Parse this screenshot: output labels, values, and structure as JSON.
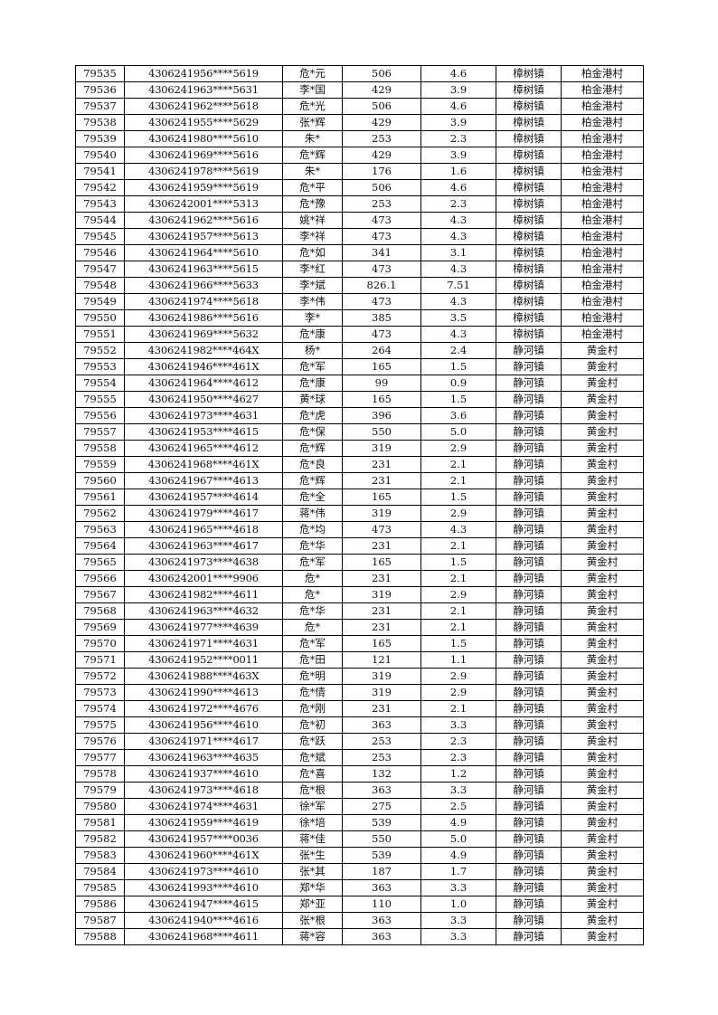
{
  "table": {
    "rows": [
      [
        "79535",
        "4306241956****5619",
        "危*元",
        "506",
        "4.6",
        "樟树镇",
        "柏金港村"
      ],
      [
        "79536",
        "4306241963****5631",
        "李*国",
        "429",
        "3.9",
        "樟树镇",
        "柏金港村"
      ],
      [
        "79537",
        "4306241962****5618",
        "危*光",
        "506",
        "4.6",
        "樟树镇",
        "柏金港村"
      ],
      [
        "79538",
        "4306241955****5629",
        "张*辉",
        "429",
        "3.9",
        "樟树镇",
        "柏金港村"
      ],
      [
        "79539",
        "4306241980****5610",
        "朱*",
        "253",
        "2.3",
        "樟树镇",
        "柏金港村"
      ],
      [
        "79540",
        "4306241969****5616",
        "危*辉",
        "429",
        "3.9",
        "樟树镇",
        "柏金港村"
      ],
      [
        "79541",
        "4306241978****5619",
        "朱*",
        "176",
        "1.6",
        "樟树镇",
        "柏金港村"
      ],
      [
        "79542",
        "4306241959****5619",
        "危*平",
        "506",
        "4.6",
        "樟树镇",
        "柏金港村"
      ],
      [
        "79543",
        "4306242001****5313",
        "危*豫",
        "253",
        "2.3",
        "樟树镇",
        "柏金港村"
      ],
      [
        "79544",
        "4306241962****5616",
        "姚*祥",
        "473",
        "4.3",
        "樟树镇",
        "柏金港村"
      ],
      [
        "79545",
        "4306241957****5613",
        "李*祥",
        "473",
        "4.3",
        "樟树镇",
        "柏金港村"
      ],
      [
        "79546",
        "4306241964****5610",
        "危*如",
        "341",
        "3.1",
        "樟树镇",
        "柏金港村"
      ],
      [
        "79547",
        "4306241963****5615",
        "李*红",
        "473",
        "4.3",
        "樟树镇",
        "柏金港村"
      ],
      [
        "79548",
        "4306241966****5633",
        "李*斌",
        "826.1",
        "7.51",
        "樟树镇",
        "柏金港村"
      ],
      [
        "79549",
        "4306241974****5618",
        "李*伟",
        "473",
        "4.3",
        "樟树镇",
        "柏金港村"
      ],
      [
        "79550",
        "4306241986****5616",
        "李*",
        "385",
        "3.5",
        "樟树镇",
        "柏金港村"
      ],
      [
        "79551",
        "4306241969****5632",
        "危*康",
        "473",
        "4.3",
        "樟树镇",
        "柏金港村"
      ],
      [
        "79552",
        "4306241982****464X",
        "杨*",
        "264",
        "2.4",
        "静河镇",
        "黄金村"
      ],
      [
        "79553",
        "4306241946****461X",
        "危*军",
        "165",
        "1.5",
        "静河镇",
        "黄金村"
      ],
      [
        "79554",
        "4306241964****4612",
        "危*康",
        "99",
        "0.9",
        "静河镇",
        "黄金村"
      ],
      [
        "79555",
        "4306241950****4627",
        "黄*球",
        "165",
        "1.5",
        "静河镇",
        "黄金村"
      ],
      [
        "79556",
        "4306241973****4631",
        "危*虎",
        "396",
        "3.6",
        "静河镇",
        "黄金村"
      ],
      [
        "79557",
        "4306241953****4615",
        "危*保",
        "550",
        "5.0",
        "静河镇",
        "黄金村"
      ],
      [
        "79558",
        "4306241965****4612",
        "危*辉",
        "319",
        "2.9",
        "静河镇",
        "黄金村"
      ],
      [
        "79559",
        "4306241968****461X",
        "危*良",
        "231",
        "2.1",
        "静河镇",
        "黄金村"
      ],
      [
        "79560",
        "4306241967****4613",
        "危*辉",
        "231",
        "2.1",
        "静河镇",
        "黄金村"
      ],
      [
        "79561",
        "4306241957****4614",
        "危*全",
        "165",
        "1.5",
        "静河镇",
        "黄金村"
      ],
      [
        "79562",
        "4306241979****4617",
        "蒋*伟",
        "319",
        "2.9",
        "静河镇",
        "黄金村"
      ],
      [
        "79563",
        "4306241965****4618",
        "危*均",
        "473",
        "4.3",
        "静河镇",
        "黄金村"
      ],
      [
        "79564",
        "4306241963****4617",
        "危*华",
        "231",
        "2.1",
        "静河镇",
        "黄金村"
      ],
      [
        "79565",
        "4306241973****4638",
        "危*军",
        "165",
        "1.5",
        "静河镇",
        "黄金村"
      ],
      [
        "79566",
        "4306242001****9906",
        "危*",
        "231",
        "2.1",
        "静河镇",
        "黄金村"
      ],
      [
        "79567",
        "4306241982****4611",
        "危*",
        "319",
        "2.9",
        "静河镇",
        "黄金村"
      ],
      [
        "79568",
        "4306241963****4632",
        "危*华",
        "231",
        "2.1",
        "静河镇",
        "黄金村"
      ],
      [
        "79569",
        "4306241977****4639",
        "危*",
        "231",
        "2.1",
        "静河镇",
        "黄金村"
      ],
      [
        "79570",
        "4306241971****4631",
        "危*军",
        "165",
        "1.5",
        "静河镇",
        "黄金村"
      ],
      [
        "79571",
        "4306241952****0011",
        "危*田",
        "121",
        "1.1",
        "静河镇",
        "黄金村"
      ],
      [
        "79572",
        "4306241988****463X",
        "危*明",
        "319",
        "2.9",
        "静河镇",
        "黄金村"
      ],
      [
        "79573",
        "4306241990****4613",
        "危*情",
        "319",
        "2.9",
        "静河镇",
        "黄金村"
      ],
      [
        "79574",
        "4306241972****4676",
        "危*刚",
        "231",
        "2.1",
        "静河镇",
        "黄金村"
      ],
      [
        "79575",
        "4306241956****4610",
        "危*初",
        "363",
        "3.3",
        "静河镇",
        "黄金村"
      ],
      [
        "79576",
        "4306241971****4617",
        "危*跃",
        "253",
        "2.3",
        "静河镇",
        "黄金村"
      ],
      [
        "79577",
        "4306241963****4635",
        "危*斌",
        "253",
        "2.3",
        "静河镇",
        "黄金村"
      ],
      [
        "79578",
        "4306241937****4610",
        "危*喜",
        "132",
        "1.2",
        "静河镇",
        "黄金村"
      ],
      [
        "79579",
        "4306241973****4618",
        "危*根",
        "363",
        "3.3",
        "静河镇",
        "黄金村"
      ],
      [
        "79580",
        "4306241974****4631",
        "徐*军",
        "275",
        "2.5",
        "静河镇",
        "黄金村"
      ],
      [
        "79581",
        "4306241959****4619",
        "徐*培",
        "539",
        "4.9",
        "静河镇",
        "黄金村"
      ],
      [
        "79582",
        "4306241957****0036",
        "蒋*佳",
        "550",
        "5.0",
        "静河镇",
        "黄金村"
      ],
      [
        "79583",
        "4306241960****461X",
        "张*生",
        "539",
        "4.9",
        "静河镇",
        "黄金村"
      ],
      [
        "79584",
        "4306241973****4610",
        "张*其",
        "187",
        "1.7",
        "静河镇",
        "黄金村"
      ],
      [
        "79585",
        "4306241993****4610",
        "郑*华",
        "363",
        "3.3",
        "静河镇",
        "黄金村"
      ],
      [
        "79586",
        "4306241947****4615",
        "郑*亚",
        "110",
        "1.0",
        "静河镇",
        "黄金村"
      ],
      [
        "79587",
        "4306241940****4616",
        "张*根",
        "363",
        "3.3",
        "静河镇",
        "黄金村"
      ],
      [
        "79588",
        "4306241968****4611",
        "蒋*容",
        "363",
        "3.3",
        "静河镇",
        "黄金村"
      ]
    ]
  }
}
